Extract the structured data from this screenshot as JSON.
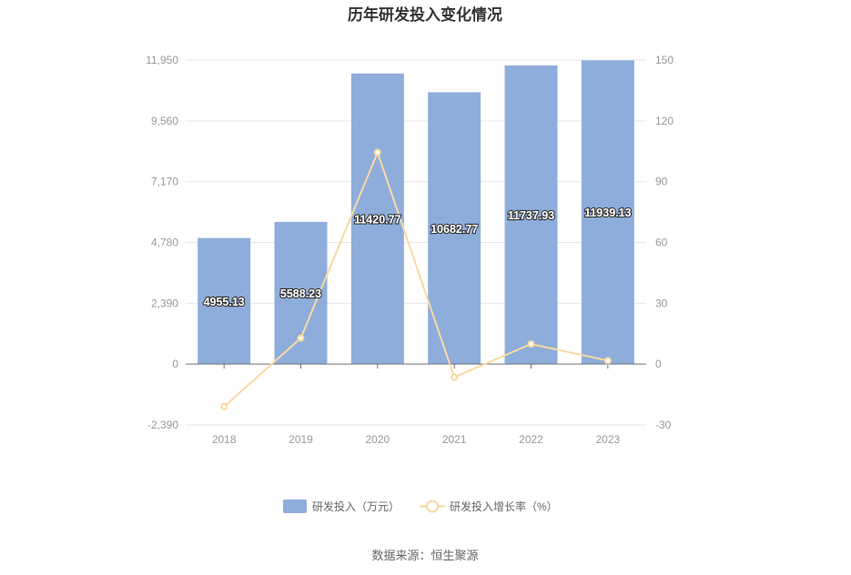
{
  "source_text": "数据来源：恒生聚源",
  "chart_data": {
    "type": "bar+line",
    "title": "历年研发投入变化情况",
    "categories": [
      "2018",
      "2019",
      "2020",
      "2021",
      "2022",
      "2023"
    ],
    "series": [
      {
        "name": "研发投入（万元）",
        "type": "bar",
        "axis": "left",
        "values": [
          4955.13,
          5588.23,
          11420.77,
          10682.77,
          11737.93,
          11939.13
        ],
        "labels": [
          "4955.13",
          "5588.23",
          "11420.77",
          "10682.77",
          "11737.93",
          "11939.13"
        ],
        "color": "#8eaddb"
      },
      {
        "name": "研发投入增长率（%）",
        "type": "line",
        "axis": "right",
        "values": [
          -21.0,
          12.8,
          104.4,
          -6.5,
          9.9,
          1.7
        ],
        "color": "#f9d9a2"
      }
    ],
    "y_left": {
      "min": -2390,
      "max": 11950,
      "ticks": [
        "-2,390",
        "0",
        "2,390",
        "4,780",
        "7,170",
        "9,560",
        "11,950"
      ],
      "tick_values": [
        -2390,
        0,
        2390,
        4780,
        7170,
        9560,
        11950
      ]
    },
    "y_right": {
      "min": -30,
      "max": 150,
      "ticks": [
        "-30",
        "0",
        "30",
        "60",
        "90",
        "120",
        "150"
      ],
      "tick_values": [
        -30,
        0,
        30,
        60,
        90,
        120,
        150
      ]
    },
    "grid": true,
    "legend_position": "bottom"
  }
}
